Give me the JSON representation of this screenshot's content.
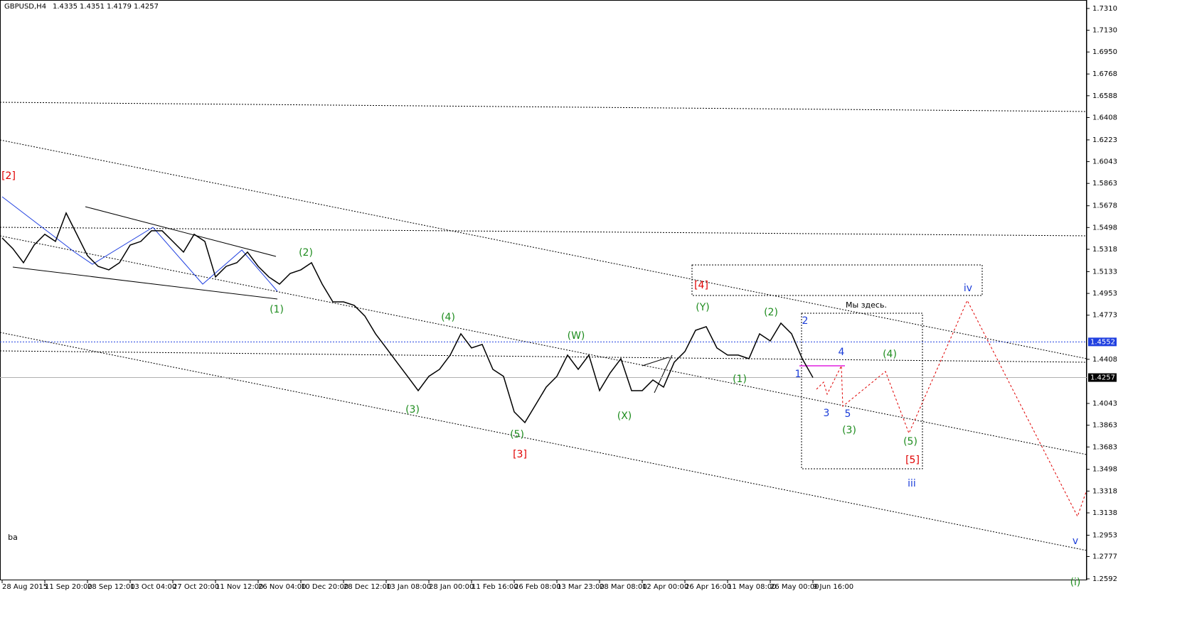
{
  "chart_data": {
    "type": "line",
    "title": "GBPUSD,H4",
    "ohlc": [
      1.4335,
      1.4351,
      1.4179,
      1.4257
    ],
    "categories": [
      "28 Aug 2015",
      null,
      null,
      null,
      "11 Sep 20:00",
      null,
      null,
      null,
      "28 Sep 12:00",
      null,
      null,
      null,
      "13 Oct 04:00",
      null,
      null,
      null,
      "27 Oct 20:00",
      null,
      null,
      null,
      "11 Nov 12:00",
      null,
      null,
      null,
      "26 Nov 04:00",
      null,
      null,
      null,
      "10 Dec 20:00",
      null,
      null,
      null,
      "28 Dec 12:00",
      null,
      null,
      null,
      "13 Jan 08:00",
      null,
      null,
      null,
      "28 Jan 00:00",
      null,
      null,
      null,
      "11 Feb 16:00",
      null,
      null,
      null,
      "26 Feb 08:00",
      null,
      null,
      null,
      "13 Mar 23:00",
      null,
      null,
      null,
      "28 Mar 08:00",
      null,
      null,
      null,
      "12 Apr 00:00",
      null,
      null,
      null,
      "26 Apr 16:00",
      null,
      null,
      null,
      "11 May 08:00",
      null,
      null,
      null,
      "26 May 00:00",
      null,
      null,
      null,
      "9 Jun 16:00"
    ],
    "series": [
      {
        "name": "GBPUSD",
        "color": "#000000",
        "values": [
          1.5412,
          1.5324,
          1.5207,
          1.5353,
          1.5442,
          1.5383,
          1.5618,
          1.5442,
          1.5265,
          1.5177,
          1.5148,
          1.5207,
          1.5353,
          1.5383,
          1.5471,
          1.5471,
          1.5383,
          1.5295,
          1.5442,
          1.5383,
          1.5089,
          1.5177,
          1.5207,
          1.5295,
          1.5177,
          1.5089,
          1.503,
          1.5118,
          1.5148,
          1.5207,
          1.503,
          1.4883,
          1.4883,
          1.4854,
          1.4766,
          1.4619,
          1.4502,
          1.4384,
          1.4267,
          1.4149,
          1.4267,
          1.4325,
          1.4443,
          1.4619,
          1.4502,
          1.4531,
          1.4325,
          1.4267,
          1.3973,
          1.3885,
          1.4031,
          1.4178,
          1.4267,
          1.4443,
          1.4325,
          1.4443,
          1.4149,
          1.4296,
          1.4413,
          1.4149,
          1.4149,
          1.4237,
          1.4178,
          1.4384,
          1.4472,
          1.4648,
          1.4678,
          1.4502,
          1.4443,
          1.4443,
          1.4413,
          1.4619,
          1.456,
          1.4707,
          1.4619,
          1.4413,
          1.4257
        ]
      }
    ],
    "ylim": [
      1.258,
      1.738
    ],
    "yticks": [
      {
        "value": 1.731,
        "label": "1.7310"
      },
      {
        "value": 1.713,
        "label": "1.7130"
      },
      {
        "value": 1.695,
        "label": "1.6950"
      },
      1.6768,
      1.6588,
      1.6408,
      1.6223,
      1.6043,
      1.5863,
      1.5678,
      1.5498,
      1.5318,
      1.5133,
      1.4953,
      1.4773,
      1.4408,
      1.4043,
      1.3863,
      1.3683,
      1.3498,
      1.3318,
      1.3138,
      1.2953,
      1.2777,
      1.2592
    ],
    "level": 1.4552,
    "current": 1.4257,
    "grid": false,
    "annotations": [
      {
        "text": "[2]",
        "color": "#e00000"
      },
      {
        "text": "(1)",
        "color": "#1e8c1e"
      },
      {
        "text": "(2)",
        "color": "#1e8c1e"
      },
      {
        "text": "(3)",
        "color": "#1e8c1e"
      },
      {
        "text": "(4)",
        "color": "#1e8c1e"
      },
      {
        "text": "(5)",
        "color": "#1e8c1e"
      },
      {
        "text": "[3]",
        "color": "#e00000"
      },
      {
        "text": "(W)",
        "color": "#1e8c1e"
      },
      {
        "text": "(X)",
        "color": "#1e8c1e"
      },
      {
        "text": "(Y)",
        "color": "#1e8c1e"
      },
      {
        "text": "[4]",
        "color": "#e00000"
      },
      {
        "text": "(1)",
        "color": "#1e8c1e"
      },
      {
        "text": "(2)",
        "color": "#1e8c1e"
      },
      {
        "text": "2",
        "color": "#1a3cd8"
      },
      {
        "text": "1",
        "color": "#1a3cd8"
      },
      {
        "text": "4",
        "color": "#1a3cd8"
      },
      {
        "text": "3",
        "color": "#1a3cd8"
      },
      {
        "text": "5",
        "color": "#1a3cd8"
      },
      {
        "text": "(3)",
        "color": "#1e8c1e"
      },
      {
        "text": "(4)",
        "color": "#1e8c1e"
      },
      {
        "text": "(5)",
        "color": "#1e8c1e"
      },
      {
        "text": "[5]",
        "color": "#e00000"
      },
      {
        "text": "iii",
        "color": "#1a3cd8"
      },
      {
        "text": "iv",
        "color": "#1a3cd8"
      },
      {
        "text": "v",
        "color": "#1a3cd8"
      },
      {
        "text": "(i)",
        "color": "#1e8c1e"
      },
      {
        "text": "Мы здесь.",
        "color": "#000000"
      },
      {
        "text": "ba",
        "color": "#000000"
      }
    ]
  }
}
